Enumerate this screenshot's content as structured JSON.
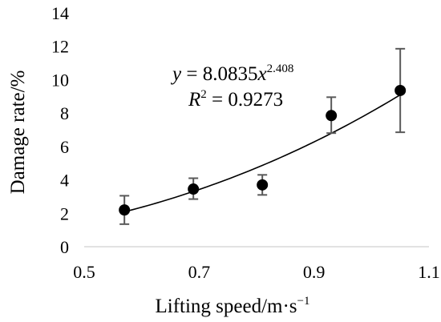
{
  "chart_data": {
    "type": "scatter",
    "title": "",
    "xlabel": "Lifting speed/m·s",
    "xlabel_exponent": "−1",
    "ylabel": "Damage rate/%",
    "xlim": [
      0.5,
      1.1
    ],
    "ylim": [
      0,
      14
    ],
    "x_ticks": [
      "0.5",
      "0.7",
      "0.9",
      "1.1"
    ],
    "y_ticks": [
      "0",
      "2",
      "4",
      "6",
      "8",
      "10",
      "12",
      "14"
    ],
    "grid": false,
    "legend": "none",
    "series": [
      {
        "points": [
          {
            "x": 0.57,
            "y": 2.2,
            "y_low": 1.35,
            "y_high": 3.05
          },
          {
            "x": 0.69,
            "y": 3.45,
            "y_low": 2.85,
            "y_high": 4.1
          },
          {
            "x": 0.81,
            "y": 3.7,
            "y_low": 3.1,
            "y_high": 4.3
          },
          {
            "x": 0.93,
            "y": 7.85,
            "y_low": 6.8,
            "y_high": 8.95
          },
          {
            "x": 1.05,
            "y": 9.35,
            "y_low": 6.85,
            "y_high": 11.85
          }
        ]
      }
    ],
    "trendline": {
      "type": "power",
      "a": 8.0835,
      "b": 2.408,
      "x_range": [
        0.57,
        1.05
      ],
      "equation": {
        "y": "y",
        "equals": " = 8.0835",
        "x": "x",
        "exponent": "2.408"
      },
      "r2": {
        "r": "R",
        "sup": "2",
        "value": " = 0.9273"
      }
    },
    "colors": {
      "marker": "#000000",
      "error_bar": "#595959",
      "trendline": "#000000",
      "axis": "#d9d9d9"
    }
  }
}
